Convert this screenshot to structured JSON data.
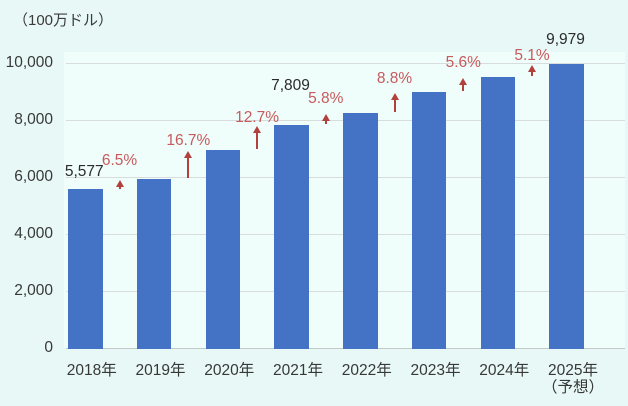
{
  "chart_data": {
    "type": "bar",
    "title": "",
    "unit_label": "（100万ドル）",
    "xlabel": "",
    "ylabel": "100万ドル",
    "ylim": [
      0,
      10000
    ],
    "grid": true,
    "y_ticks": [
      0,
      2000,
      4000,
      6000,
      8000,
      10000
    ],
    "y_tick_labels": [
      "0",
      "2,000",
      "4,000",
      "6,000",
      "8,000",
      "10,000"
    ],
    "categories": [
      "2018年",
      "2019年",
      "2020年",
      "2021年",
      "2022年",
      "2023年",
      "2024年",
      "2025年"
    ],
    "forecast_note": {
      "bar_index": 7,
      "text": "（予想）"
    },
    "values": [
      5577,
      5940,
      6932,
      7809,
      8262,
      8989,
      9492,
      9979
    ],
    "value_labels": [
      {
        "bar_index": 0,
        "text": "5,577"
      },
      {
        "bar_index": 3,
        "text": "7,809"
      },
      {
        "bar_index": 7,
        "text": "9,979"
      }
    ],
    "growth_rates": [
      "6.5%",
      "16.7%",
      "12.7%",
      "5.8%",
      "8.8%",
      "5.6%",
      "5.1%"
    ],
    "colors": {
      "bar": "#4472C4",
      "growth_text": "#C75A5C",
      "arrow": "#B2413B",
      "axis_text": "#383838",
      "value_text": "#2B2B2B",
      "gridline": "#D8DCDC",
      "baseline": "#C3C9C9",
      "background": "#E7F8F6",
      "plot_background": "#EFFDFB"
    }
  }
}
